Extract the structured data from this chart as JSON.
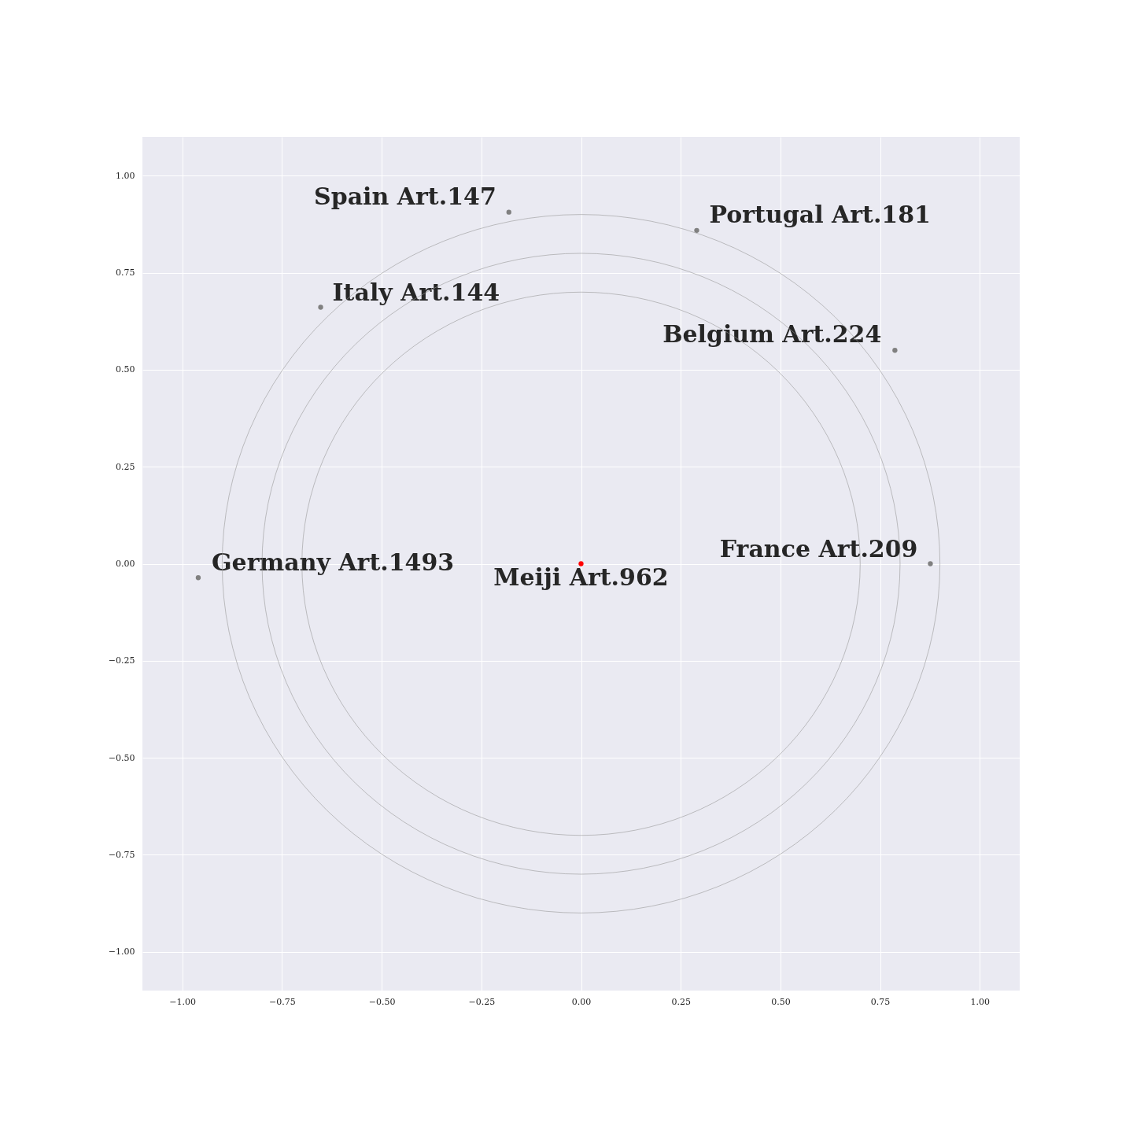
{
  "chart_data": {
    "type": "scatter",
    "grid": true,
    "xlim": [
      -1.1,
      1.1
    ],
    "ylim": [
      -1.1,
      1.1
    ],
    "xticks": [
      {
        "value": -1,
        "label": "−1.00"
      },
      {
        "value": -0.75,
        "label": "−0.75"
      },
      {
        "value": -0.5,
        "label": "−0.50"
      },
      {
        "value": -0.25,
        "label": "−0.25"
      },
      {
        "value": 0,
        "label": "0.00"
      },
      {
        "value": 0.25,
        "label": "0.25"
      },
      {
        "value": 0.5,
        "label": "0.50"
      },
      {
        "value": 0.75,
        "label": "0.75"
      },
      {
        "value": 1,
        "label": "1.00"
      }
    ],
    "yticks": [
      {
        "value": -1,
        "label": "−1.00"
      },
      {
        "value": -0.75,
        "label": "−0.75"
      },
      {
        "value": -0.5,
        "label": "−0.50"
      },
      {
        "value": -0.25,
        "label": "−0.25"
      },
      {
        "value": 0,
        "label": "0.00"
      },
      {
        "value": 0.25,
        "label": "0.25"
      },
      {
        "value": 0.5,
        "label": "0.50"
      },
      {
        "value": 0.75,
        "label": "0.75"
      },
      {
        "value": 1,
        "label": "1.00"
      }
    ],
    "series": [
      {
        "type": "scatter",
        "color": "#808080",
        "x": [
          -0.181,
          0.29,
          -0.653,
          0.787,
          0.876,
          -0.96
        ],
        "values": [
          0.906,
          0.859,
          0.661,
          0.55,
          0,
          -0.036
        ]
      },
      {
        "type": "scatter",
        "color": "#ff0000",
        "x": [
          0
        ],
        "values": [
          0
        ]
      }
    ],
    "annotations": [
      {
        "text": "Spain Art.147",
        "x": -0.181,
        "y": 0.906
      },
      {
        "text": "Portugal Art.181",
        "x": 0.29,
        "y": 0.859
      },
      {
        "text": "Italy Art.144",
        "x": -0.653,
        "y": 0.661
      },
      {
        "text": "Belgium Art.224",
        "x": 0.787,
        "y": 0.55
      },
      {
        "text": "France Art.209",
        "x": 0.876,
        "y": 0
      },
      {
        "text": "Germany Art.1493",
        "x": -0.96,
        "y": -0.036
      },
      {
        "text": "Meiji Art.962",
        "x": 0,
        "y": 0
      }
    ]
  }
}
